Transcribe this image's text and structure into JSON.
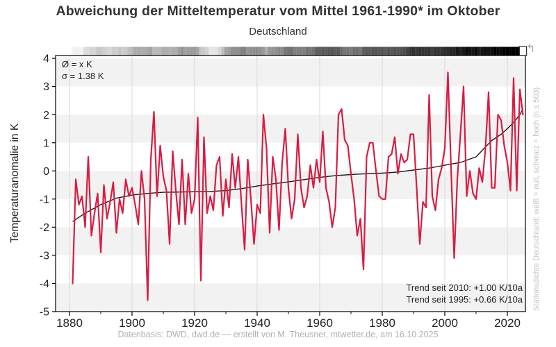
{
  "title": "Abweichung der Mitteltemperatur vom Mittel 1961-1990* im Oktober",
  "subtitle": "Deutschland",
  "annotation": {
    "mean_label": "Ø = x K",
    "sigma_label": "σ = 1.38 K"
  },
  "trend_box": {
    "line1": "Trend seit 2010: +1.00 K/10a",
    "line2": "Trend seit 1995: +0.66 K/10a"
  },
  "right_caption": "Stationsdichte Deutschland: weiß = null, schwarz = hoch (n ≤ 503)",
  "arrow_icon": "↰",
  "footer": "Datenbasis: DWD, dwd.de — erstellt von M. Theusner, mtwetter.de, am 16.10.2025",
  "colors": {
    "series": "#d91c42",
    "trend_line": "#1a1a1a",
    "band": "#f2f2f2",
    "grid": "#d9d9d9",
    "frame": "#000000",
    "text": "#222222",
    "muted": "#b0b0b0"
  },
  "chart_data": {
    "type": "line",
    "title": "Abweichung der Mitteltemperatur vom Mittel 1961-1990* im Oktober",
    "subtitle": "Deutschland",
    "xlabel": "",
    "ylabel": "Temperaturanomalie in K",
    "xlim": [
      1875.5,
      2026
    ],
    "ylim": [
      -5,
      4.1
    ],
    "x_ticks": [
      1880,
      1900,
      1920,
      1940,
      1960,
      1980,
      2000,
      2020
    ],
    "x_minor_ticks": [
      1890,
      1910,
      1930,
      1950,
      1970,
      1990,
      2010
    ],
    "y_ticks": [
      -5,
      -4,
      -3,
      -2,
      -1,
      0,
      1,
      2,
      3,
      4
    ],
    "grid": "vertical-gridlines-and-horizontal-bands",
    "legend": "none",
    "x_start_year": 1881,
    "values": [
      -4.0,
      -0.3,
      -1.2,
      -0.9,
      -2.0,
      0.5,
      -2.3,
      -1.5,
      -0.8,
      -2.9,
      -0.5,
      -1.7,
      -1.1,
      -0.4,
      -2.2,
      -1.0,
      -1.5,
      -0.3,
      -0.9,
      -0.6,
      -1.2,
      -1.9,
      0.0,
      -1.0,
      -4.6,
      0.4,
      2.1,
      -0.9,
      0.9,
      -0.2,
      -0.7,
      -2.6,
      0.7,
      -0.7,
      -1.9,
      0.4,
      -1.9,
      -0.1,
      -1.5,
      -1.0,
      1.9,
      -3.9,
      1.2,
      -1.5,
      -0.9,
      -1.4,
      0.2,
      0.5,
      -1.6,
      -0.3,
      -1.3,
      0.6,
      -0.6,
      0.5,
      -1.2,
      -2.8,
      0.4,
      -1.0,
      -2.6,
      -1.2,
      -1.5,
      2.0,
      0.8,
      -2.2,
      0.5,
      -0.3,
      -2.1,
      0.3,
      1.5,
      -0.6,
      -1.7,
      -1.0,
      1.3,
      -0.6,
      -1.3,
      -0.9,
      0.2,
      -0.6,
      0.4,
      -0.4,
      1.4,
      -0.6,
      -1.1,
      -2.0,
      -1.3,
      2.0,
      2.2,
      1.1,
      0.9,
      -0.1,
      -1.0,
      -2.3,
      -1.7,
      -3.5,
      0.5,
      1.0,
      1.0,
      0.0,
      -0.9,
      -1.0,
      -1.0,
      0.5,
      0.6,
      1.2,
      -0.1,
      0.6,
      0.3,
      0.4,
      1.3,
      1.3,
      -0.6,
      -2.6,
      -1.1,
      -1.3,
      2.7,
      -0.9,
      -1.4,
      -0.3,
      0.1,
      0.8,
      3.5,
      0.1,
      -3.1,
      -0.3,
      1.3,
      3.0,
      -0.9,
      0.0,
      -0.8,
      -1.0,
      0.1,
      -0.4,
      0.8,
      2.8,
      -0.6,
      -0.6,
      2.0,
      1.8,
      0.9,
      0.3,
      -0.7,
      3.3,
      -0.7,
      2.9,
      2.0
    ],
    "smoothed_trend_anchors": [
      [
        1881,
        -1.8
      ],
      [
        1885,
        -1.5
      ],
      [
        1890,
        -1.2
      ],
      [
        1895,
        -0.97
      ],
      [
        1900,
        -0.86
      ],
      [
        1905,
        -0.8
      ],
      [
        1910,
        -0.76
      ],
      [
        1915,
        -0.75
      ],
      [
        1920,
        -0.74
      ],
      [
        1925,
        -0.73
      ],
      [
        1930,
        -0.7
      ],
      [
        1935,
        -0.63
      ],
      [
        1940,
        -0.54
      ],
      [
        1945,
        -0.46
      ],
      [
        1950,
        -0.39
      ],
      [
        1955,
        -0.31
      ],
      [
        1960,
        -0.23
      ],
      [
        1965,
        -0.17
      ],
      [
        1970,
        -0.13
      ],
      [
        1975,
        -0.1
      ],
      [
        1980,
        -0.08
      ],
      [
        1985,
        -0.04
      ],
      [
        1990,
        0.03
      ],
      [
        1995,
        0.1
      ],
      [
        2000,
        0.2
      ],
      [
        2005,
        0.3
      ],
      [
        2010,
        0.5
      ],
      [
        2013,
        0.85
      ],
      [
        2015,
        1.08
      ],
      [
        2018,
        1.3
      ],
      [
        2020,
        1.5
      ],
      [
        2022,
        1.72
      ],
      [
        2024,
        2.0
      ],
      [
        2025,
        2.2
      ]
    ],
    "station_density_bar": {
      "note": "white = no stations, black = high density, last incomplete year drawn white with border",
      "anchors": [
        [
          1881,
          0.04
        ],
        [
          1884,
          0.1
        ],
        [
          1888,
          0.16
        ],
        [
          1892,
          0.2
        ],
        [
          1896,
          0.24
        ],
        [
          1900,
          0.27
        ],
        [
          1904,
          0.3
        ],
        [
          1908,
          0.33
        ],
        [
          1912,
          0.36
        ],
        [
          1916,
          0.38
        ],
        [
          1920,
          0.33
        ],
        [
          1923,
          0.25
        ],
        [
          1925,
          0.15
        ],
        [
          1927,
          0.13
        ],
        [
          1929,
          0.3
        ],
        [
          1932,
          0.4
        ],
        [
          1936,
          0.45
        ],
        [
          1940,
          0.48
        ],
        [
          1944,
          0.35
        ],
        [
          1947,
          0.42
        ],
        [
          1950,
          0.52
        ],
        [
          1955,
          0.56
        ],
        [
          1960,
          0.6
        ],
        [
          1965,
          0.62
        ],
        [
          1970,
          0.56
        ],
        [
          1975,
          0.6
        ],
        [
          1980,
          0.66
        ],
        [
          1985,
          0.72
        ],
        [
          1990,
          0.76
        ],
        [
          1995,
          0.8
        ],
        [
          2000,
          0.84
        ],
        [
          2005,
          0.88
        ],
        [
          2010,
          0.92
        ],
        [
          2014,
          0.97
        ],
        [
          2016,
          1.0
        ],
        [
          2024,
          1.0
        ]
      ],
      "null_year": 2025
    }
  }
}
